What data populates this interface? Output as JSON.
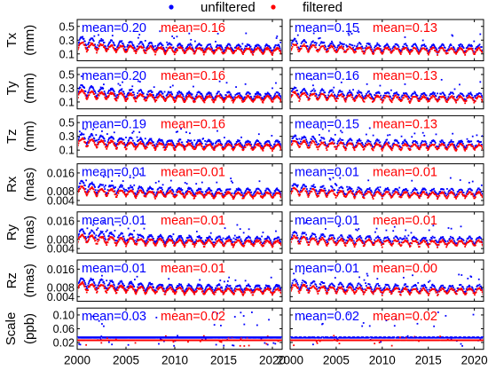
{
  "colors": {
    "unfiltered": "#0000ff",
    "filtered": "#ff0000",
    "axis": "#000000"
  },
  "chart_data": {
    "type": "scatter",
    "legend": {
      "placement": "top-center",
      "entries": [
        {
          "key": "unfiltered",
          "label": "unfiltered",
          "color": "#0000ff"
        },
        {
          "key": "filtered",
          "label": "filtered",
          "color": "#ff0000"
        }
      ]
    },
    "x_ticks": [
      "2000",
      "2005",
      "2010",
      "2015",
      "2020"
    ],
    "x_tick_values": [
      2000,
      2005,
      2010,
      2015,
      2020
    ],
    "xlim": [
      2000,
      2021
    ],
    "grid": false,
    "columns": 2,
    "rows": [
      {
        "label": "Tx",
        "unit": "(mm)",
        "yticks": [
          "0.5",
          "0.3",
          "0.1"
        ],
        "ytick_values": [
          0.5,
          0.3,
          0.1
        ],
        "ylim": [
          0.0,
          0.6
        ],
        "means": [
          {
            "unfiltered": "mean=0.20",
            "filtered": "mean=0.16"
          },
          {
            "unfiltered": "mean=0.15",
            "filtered": "mean=0.13"
          }
        ]
      },
      {
        "label": "Ty",
        "unit": "(mm)",
        "yticks": [
          "0.5",
          "0.3",
          "0.1"
        ],
        "ytick_values": [
          0.5,
          0.3,
          0.1
        ],
        "ylim": [
          0.0,
          0.6
        ],
        "means": [
          {
            "unfiltered": "mean=0.20",
            "filtered": "mean=0.16"
          },
          {
            "unfiltered": "mean=0.16",
            "filtered": "mean=0.13"
          }
        ]
      },
      {
        "label": "Tz",
        "unit": "(mm)",
        "yticks": [
          "0.5",
          "0.3",
          "0.1"
        ],
        "ytick_values": [
          0.5,
          0.3,
          0.1
        ],
        "ylim": [
          0.0,
          0.6
        ],
        "means": [
          {
            "unfiltered": "mean=0.19",
            "filtered": "mean=0.16"
          },
          {
            "unfiltered": "mean=0.15",
            "filtered": "mean=0.13"
          }
        ]
      },
      {
        "label": "Rx",
        "unit": "(mas)",
        "yticks": [
          "0.016",
          "0.008",
          "0.004"
        ],
        "ytick_values": [
          0.016,
          0.008,
          0.004
        ],
        "ylim": [
          0.002,
          0.02
        ],
        "means": [
          {
            "unfiltered": "mean=0.01",
            "filtered": "mean=0.01"
          },
          {
            "unfiltered": "mean=0.01",
            "filtered": "mean=0.01"
          }
        ]
      },
      {
        "label": "Ry",
        "unit": "(mas)",
        "yticks": [
          "0.016",
          "0.008",
          "0.004"
        ],
        "ytick_values": [
          0.016,
          0.008,
          0.004
        ],
        "ylim": [
          0.002,
          0.02
        ],
        "means": [
          {
            "unfiltered": "mean=0.01",
            "filtered": "mean=0.01"
          },
          {
            "unfiltered": "mean=0.01",
            "filtered": "mean=0.01"
          }
        ]
      },
      {
        "label": "Rz",
        "unit": "(mas)",
        "yticks": [
          "0.016",
          "0.008",
          "0.004"
        ],
        "ytick_values": [
          0.016,
          0.008,
          0.004
        ],
        "ylim": [
          0.002,
          0.02
        ],
        "means": [
          {
            "unfiltered": "mean=0.01",
            "filtered": "mean=0.01"
          },
          {
            "unfiltered": "mean=0.01",
            "filtered": "mean=0.00"
          }
        ]
      },
      {
        "label": "Scale",
        "unit": "(ppb)",
        "yticks": [
          "0.10",
          "0.06",
          "0.02"
        ],
        "ytick_values": [
          0.1,
          0.06,
          0.02
        ],
        "ylim": [
          0.0,
          0.12
        ],
        "means": [
          {
            "unfiltered": "mean=0.03",
            "filtered": "mean=0.02"
          },
          {
            "unfiltered": "mean=0.02",
            "filtered": "mean=0.02"
          }
        ]
      }
    ]
  }
}
